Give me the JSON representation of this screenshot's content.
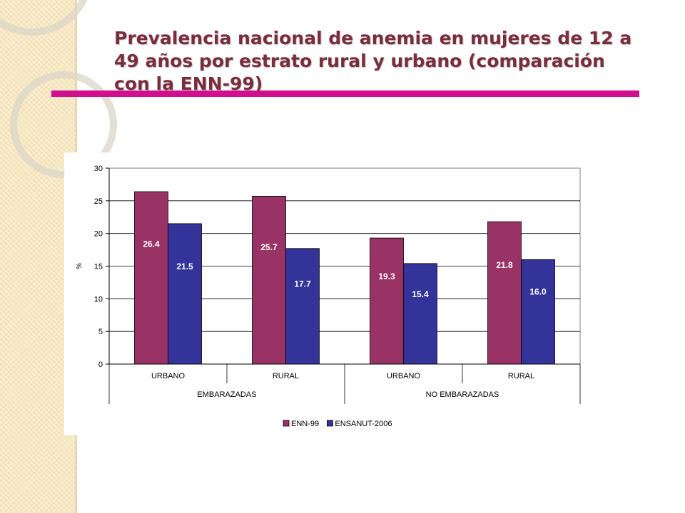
{
  "slide": {
    "title": "Prevalencia nacional de anemia en mujeres de 12 a 49 años por estrato rural y urbano (comparación con la ENN-99)",
    "accent_color": "#d10f8e",
    "title_color": "#7a2d3c"
  },
  "chart_data": {
    "type": "bar",
    "title": "Prevalencia nacional de anemia en mujeres de 12 a 49 años por estrato rural y urbano (comparación con la ENN-99)",
    "ylabel": "%",
    "xlabel": "",
    "ylim": [
      0,
      30
    ],
    "yticks": [
      0,
      5,
      10,
      15,
      20,
      25,
      30
    ],
    "grid": true,
    "categories": [
      "URBANO",
      "RURAL",
      "URBANO",
      "RURAL"
    ],
    "groups": [
      {
        "label": "EMBARAZADAS",
        "categories": [
          0,
          1
        ]
      },
      {
        "label": "NO EMBARAZADAS",
        "categories": [
          2,
          3
        ]
      }
    ],
    "series": [
      {
        "name": "ENN-99",
        "color": "#993366",
        "values": [
          26.4,
          25.7,
          19.3,
          21.8
        ],
        "labels": [
          "26.4",
          "25.7",
          "19.3",
          "21.8"
        ]
      },
      {
        "name": "ENSANUT-2006",
        "color": "#333399",
        "values": [
          21.5,
          17.7,
          15.4,
          16.0
        ],
        "labels": [
          "21.5",
          "17.7",
          "15.4",
          "16.0"
        ]
      }
    ],
    "legend_position": "bottom"
  }
}
